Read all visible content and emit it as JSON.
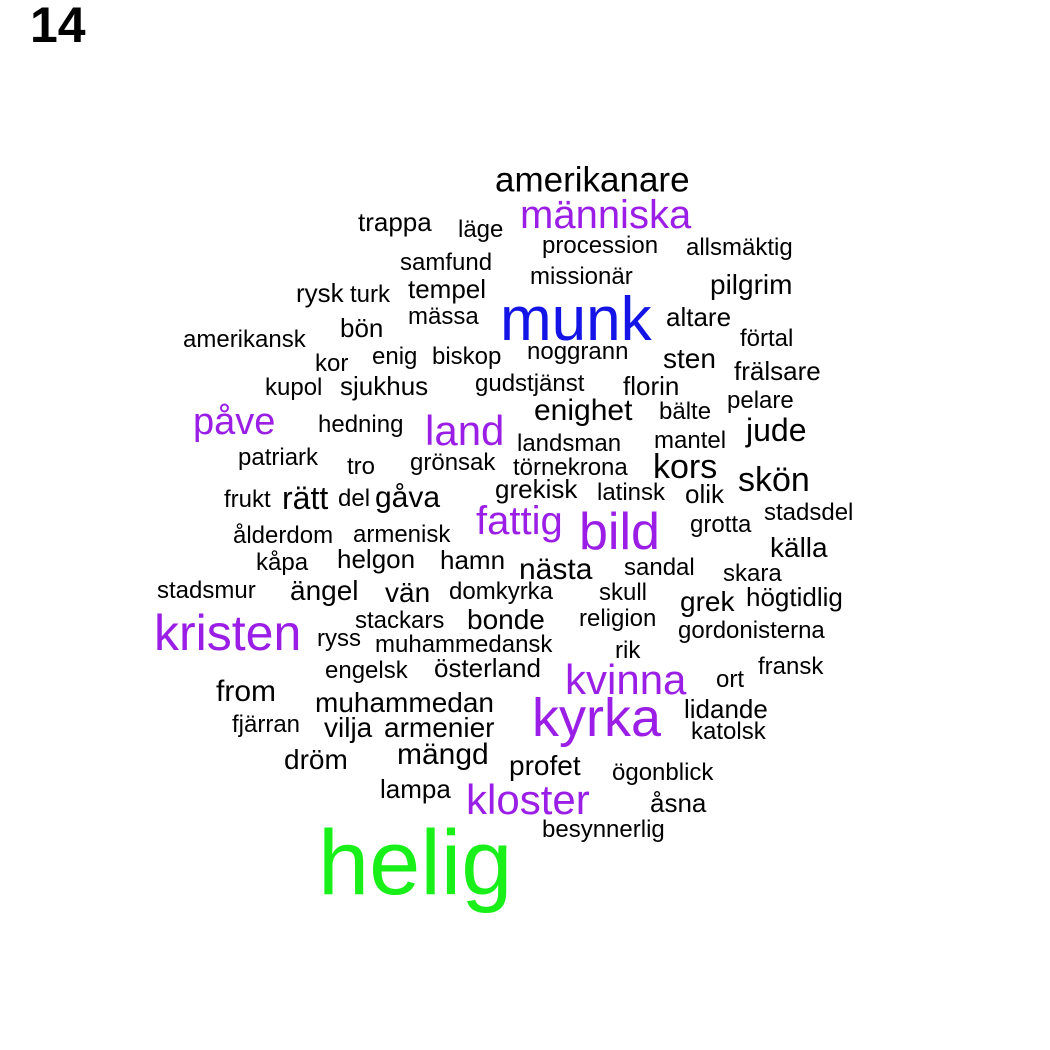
{
  "page_number": "14",
  "colors": {
    "black": "#000000",
    "purple": "#9a1ee6",
    "blue": "#1414e6",
    "green": "#19f019"
  },
  "words": [
    {
      "text": "amerikanare",
      "color": "black"
    },
    {
      "text": "människa",
      "color": "purple"
    },
    {
      "text": "trappa",
      "color": "black"
    },
    {
      "text": "läge",
      "color": "black"
    },
    {
      "text": "procession",
      "color": "black"
    },
    {
      "text": "allsmäktig",
      "color": "black"
    },
    {
      "text": "samfund",
      "color": "black"
    },
    {
      "text": "missionär",
      "color": "black"
    },
    {
      "text": "pilgrim",
      "color": "black"
    },
    {
      "text": "rysk",
      "color": "black"
    },
    {
      "text": "turk",
      "color": "black"
    },
    {
      "text": "tempel",
      "color": "black"
    },
    {
      "text": "munk",
      "color": "blue"
    },
    {
      "text": "mässa",
      "color": "black"
    },
    {
      "text": "altare",
      "color": "black"
    },
    {
      "text": "amerikansk",
      "color": "black"
    },
    {
      "text": "bön",
      "color": "black"
    },
    {
      "text": "förtal",
      "color": "black"
    },
    {
      "text": "kor",
      "color": "black"
    },
    {
      "text": "enig",
      "color": "black"
    },
    {
      "text": "biskop",
      "color": "black"
    },
    {
      "text": "noggrann",
      "color": "black"
    },
    {
      "text": "sten",
      "color": "black"
    },
    {
      "text": "frälsare",
      "color": "black"
    },
    {
      "text": "kupol",
      "color": "black"
    },
    {
      "text": "sjukhus",
      "color": "black"
    },
    {
      "text": "gudstjänst",
      "color": "black"
    },
    {
      "text": "florin",
      "color": "black"
    },
    {
      "text": "pelare",
      "color": "black"
    },
    {
      "text": "påve",
      "color": "purple"
    },
    {
      "text": "hedning",
      "color": "black"
    },
    {
      "text": "land",
      "color": "purple"
    },
    {
      "text": "enighet",
      "color": "black"
    },
    {
      "text": "bälte",
      "color": "black"
    },
    {
      "text": "jude",
      "color": "black"
    },
    {
      "text": "landsman",
      "color": "black"
    },
    {
      "text": "mantel",
      "color": "black"
    },
    {
      "text": "patriark",
      "color": "black"
    },
    {
      "text": "tro",
      "color": "black"
    },
    {
      "text": "grönsak",
      "color": "black"
    },
    {
      "text": "törnekrona",
      "color": "black"
    },
    {
      "text": "kors",
      "color": "black"
    },
    {
      "text": "skön",
      "color": "black"
    },
    {
      "text": "frukt",
      "color": "black"
    },
    {
      "text": "rätt",
      "color": "black"
    },
    {
      "text": "del",
      "color": "black"
    },
    {
      "text": "gåva",
      "color": "black"
    },
    {
      "text": "grekisk",
      "color": "black"
    },
    {
      "text": "latinsk",
      "color": "black"
    },
    {
      "text": "olik",
      "color": "black"
    },
    {
      "text": "stadsdel",
      "color": "black"
    },
    {
      "text": "fattig",
      "color": "purple"
    },
    {
      "text": "bild",
      "color": "purple"
    },
    {
      "text": "grotta",
      "color": "black"
    },
    {
      "text": "ålderdom",
      "color": "black"
    },
    {
      "text": "armenisk",
      "color": "black"
    },
    {
      "text": "källa",
      "color": "black"
    },
    {
      "text": "kåpa",
      "color": "black"
    },
    {
      "text": "helgon",
      "color": "black"
    },
    {
      "text": "hamn",
      "color": "black"
    },
    {
      "text": "nästa",
      "color": "black"
    },
    {
      "text": "sandal",
      "color": "black"
    },
    {
      "text": "skara",
      "color": "black"
    },
    {
      "text": "stadsmur",
      "color": "black"
    },
    {
      "text": "ängel",
      "color": "black"
    },
    {
      "text": "vän",
      "color": "black"
    },
    {
      "text": "domkyrka",
      "color": "black"
    },
    {
      "text": "skull",
      "color": "black"
    },
    {
      "text": "grek",
      "color": "black"
    },
    {
      "text": "högtidlig",
      "color": "black"
    },
    {
      "text": "kristen",
      "color": "purple"
    },
    {
      "text": "stackars",
      "color": "black"
    },
    {
      "text": "bonde",
      "color": "black"
    },
    {
      "text": "religion",
      "color": "black"
    },
    {
      "text": "gordonisterna",
      "color": "black"
    },
    {
      "text": "ryss",
      "color": "black"
    },
    {
      "text": "muhammedansk",
      "color": "black"
    },
    {
      "text": "rik",
      "color": "black"
    },
    {
      "text": "engelsk",
      "color": "black"
    },
    {
      "text": "österland",
      "color": "black"
    },
    {
      "text": "kvinna",
      "color": "purple"
    },
    {
      "text": "fransk",
      "color": "black"
    },
    {
      "text": "ort",
      "color": "black"
    },
    {
      "text": "from",
      "color": "black"
    },
    {
      "text": "muhammedan",
      "color": "black"
    },
    {
      "text": "kyrka",
      "color": "purple"
    },
    {
      "text": "lidande",
      "color": "black"
    },
    {
      "text": "fjärran",
      "color": "black"
    },
    {
      "text": "vilja",
      "color": "black"
    },
    {
      "text": "armenier",
      "color": "black"
    },
    {
      "text": "katolsk",
      "color": "black"
    },
    {
      "text": "dröm",
      "color": "black"
    },
    {
      "text": "mängd",
      "color": "black"
    },
    {
      "text": "profet",
      "color": "black"
    },
    {
      "text": "ögonblick",
      "color": "black"
    },
    {
      "text": "lampa",
      "color": "black"
    },
    {
      "text": "kloster",
      "color": "purple"
    },
    {
      "text": "åsna",
      "color": "black"
    },
    {
      "text": "besynnerlig",
      "color": "black"
    },
    {
      "text": "helig",
      "color": "green"
    }
  ]
}
